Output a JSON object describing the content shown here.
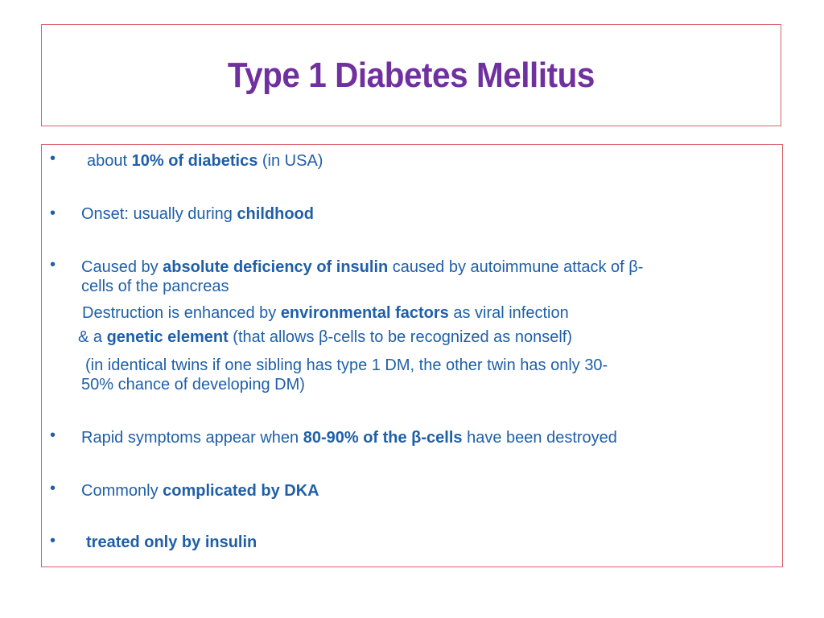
{
  "slide": {
    "title": "Type 1 Diabetes Mellitus",
    "bullet_char": "•",
    "items": [
      {
        "pre": "about ",
        "bold": "10% of diabetics",
        "post": "  (in USA)"
      },
      {
        "pre": "Onset: usually during ",
        "bold": "childhood",
        "post": ""
      },
      {
        "pre": "Caused by ",
        "bold": "absolute deficiency of insulin",
        "post": " caused by autoimmune attack of β-",
        "cont": "cells of the pancreas"
      },
      {
        "pre": "Destruction is enhanced by ",
        "bold": "environmental factors",
        "post": " as viral infection"
      },
      {
        "pre": "& a ",
        "bold": "genetic element",
        "post": " (that allows β-cells to be recognized as nonself)"
      },
      {
        "pre": "(in identical twins if one sibling has type 1 DM, the other twin has only 30-",
        "cont": "50% chance of developing DM)"
      },
      {
        "pre": "Rapid symptoms appear when ",
        "bold": "80-90% of the β-cells",
        "post": " have been destroyed"
      },
      {
        "pre": "Commonly ",
        "bold": "complicated by DKA",
        "post": ""
      },
      {
        "bold": "treated only by insulin"
      }
    ]
  },
  "colors": {
    "title": "#7030a0",
    "text": "#1f5fa8",
    "border": "#d9626a"
  }
}
